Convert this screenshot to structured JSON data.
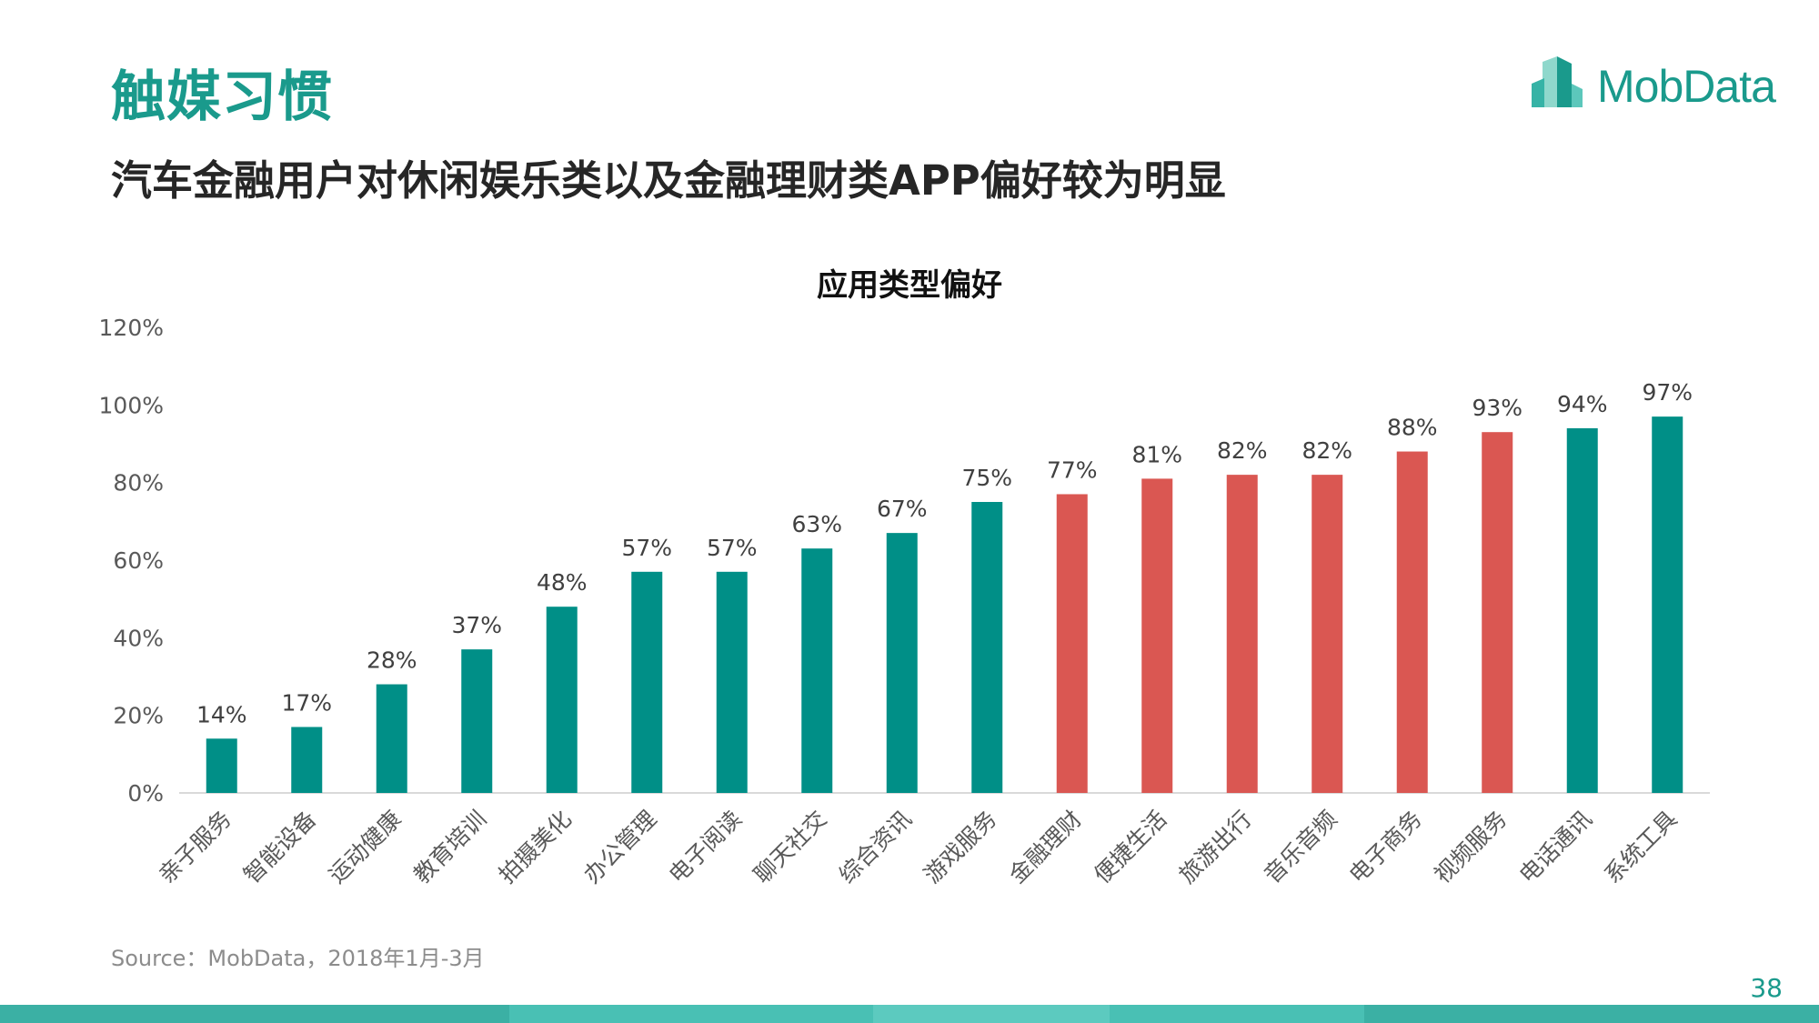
{
  "header": {
    "section_title": "触媒习惯",
    "headline": "汽车金融用户对休闲娱乐类以及金融理财类APP偏好较为明显"
  },
  "logo": {
    "text": "MobData",
    "icon": "mobdata-logo-icon"
  },
  "colors": {
    "teal": "#008f87",
    "red": "#da5752",
    "accent": "#1a9a8c",
    "footer": "#49c0b4"
  },
  "chart_data": {
    "type": "bar",
    "title": "应用类型偏好",
    "xlabel": "",
    "ylabel": "",
    "ylim": [
      0,
      120
    ],
    "yticks": [
      "0%",
      "20%",
      "40%",
      "60%",
      "80%",
      "100%",
      "120%"
    ],
    "grid": false,
    "categories": [
      "亲子服务",
      "智能设备",
      "运动健康",
      "教育培训",
      "拍摄美化",
      "办公管理",
      "电子阅读",
      "聊天社交",
      "综合资讯",
      "游戏服务",
      "金融理财",
      "便捷生活",
      "旅游出行",
      "音乐音频",
      "电子商务",
      "视频服务",
      "电话通讯",
      "系统工具"
    ],
    "values": [
      14,
      17,
      28,
      37,
      48,
      57,
      57,
      63,
      67,
      75,
      77,
      81,
      82,
      82,
      88,
      93,
      94,
      97
    ],
    "data_labels": [
      "14%",
      "17%",
      "28%",
      "37%",
      "48%",
      "57%",
      "57%",
      "63%",
      "67%",
      "75%",
      "77%",
      "81%",
      "82%",
      "82%",
      "88%",
      "93%",
      "94%",
      "97%"
    ],
    "highlight": [
      false,
      false,
      false,
      false,
      false,
      false,
      false,
      false,
      false,
      false,
      true,
      true,
      true,
      true,
      true,
      true,
      false,
      false
    ]
  },
  "footer": {
    "source": "Source：MobData，2018年1月-3月",
    "page_number": "38"
  }
}
